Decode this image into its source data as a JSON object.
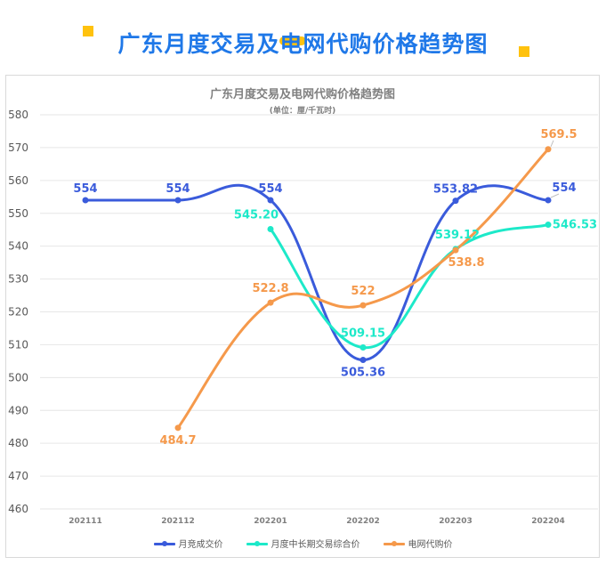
{
  "banner": {
    "title": "广东月度交易及电网代购价格趋势图"
  },
  "chart_data": {
    "type": "line",
    "title": "广东月度交易及电网代购价格趋势图",
    "subtitle": "(单位：厘/千瓦时)",
    "categories": [
      "202111",
      "202112",
      "202201",
      "202202",
      "202203",
      "202204"
    ],
    "ylim": [
      460,
      580
    ],
    "yticks": [
      460,
      470,
      480,
      490,
      500,
      510,
      520,
      530,
      540,
      550,
      560,
      570,
      580
    ],
    "grid": true,
    "legend_position": "bottom",
    "series": [
      {
        "name": "月竞成交价",
        "color": "#3a5bdb",
        "values": [
          554,
          554,
          554,
          505.36,
          553.82,
          554
        ],
        "labels": [
          "554",
          "554",
          "554",
          "505.36",
          "553.82",
          "554"
        ]
      },
      {
        "name": "月度中长期交易综合价",
        "color": "#1de9c9",
        "values": [
          null,
          null,
          545.2,
          509.15,
          539.12,
          546.53
        ],
        "labels": [
          null,
          null,
          "545.20",
          "509.15",
          "539.12",
          "546.53"
        ]
      },
      {
        "name": "电网代购价",
        "color": "#f5994b",
        "values": [
          null,
          484.7,
          522.8,
          522,
          538.8,
          569.5
        ],
        "labels": [
          null,
          "484.7",
          "522.8",
          "522",
          "538.8",
          "569.5"
        ]
      }
    ]
  }
}
